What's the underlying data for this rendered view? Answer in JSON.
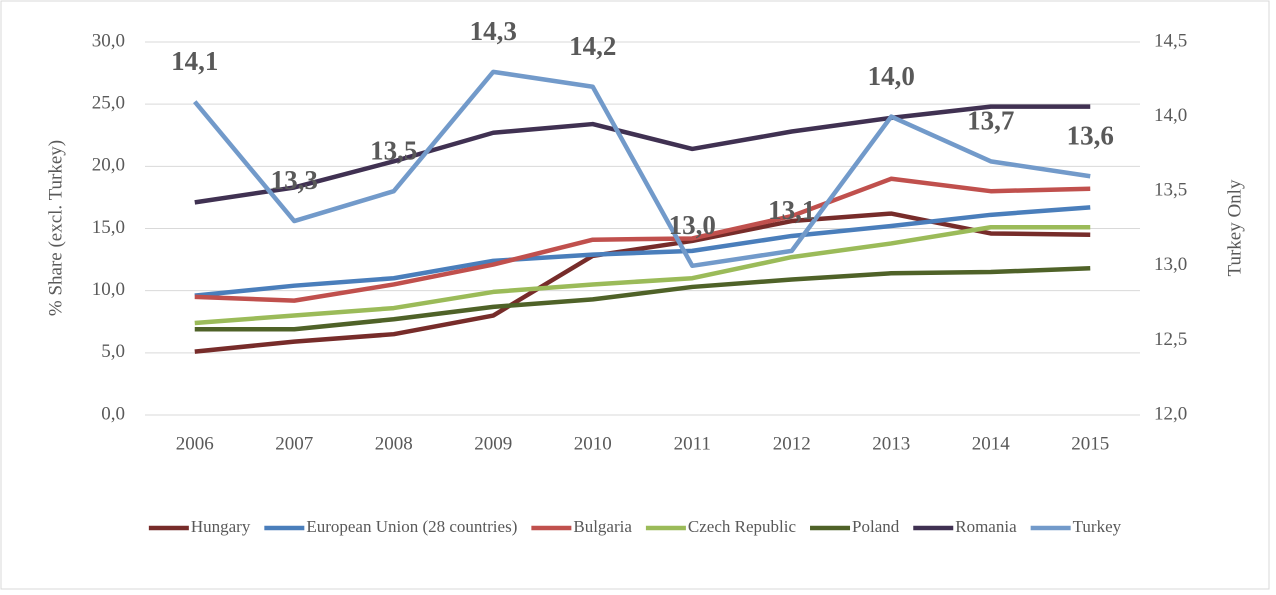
{
  "chart_data": {
    "type": "line",
    "categories": [
      "2006",
      "2007",
      "2008",
      "2009",
      "2010",
      "2011",
      "2012",
      "2013",
      "2014",
      "2015"
    ],
    "y_label": "% Share (excl. Turkey)",
    "y2_label": "Turkey Only",
    "ylim": [
      0,
      30
    ],
    "yticks": [
      {
        "value": 0,
        "label": "0,0"
      },
      {
        "value": 5,
        "label": "5,0"
      },
      {
        "value": 10,
        "label": "10,0"
      },
      {
        "value": 15,
        "label": "15,0"
      },
      {
        "value": 20,
        "label": "20,0"
      },
      {
        "value": 25,
        "label": "25,0"
      },
      {
        "value": 30,
        "label": "30,0"
      }
    ],
    "y2lim": [
      12,
      14.5
    ],
    "y2ticks": [
      {
        "value": 12,
        "label": "12,0"
      },
      {
        "value": 12.5,
        "label": "12,5"
      },
      {
        "value": 13,
        "label": "13,0"
      },
      {
        "value": 13.5,
        "label": "13,5"
      },
      {
        "value": 14,
        "label": "14,0"
      },
      {
        "value": 14.5,
        "label": "14,5"
      }
    ],
    "grid": true,
    "legend": "bottom",
    "series": [
      {
        "name": "Hungary",
        "color": "#772c2a",
        "values": [
          5.1,
          5.9,
          6.5,
          8.0,
          12.8,
          14.0,
          15.6,
          16.2,
          14.6,
          14.5
        ]
      },
      {
        "name": "European Union (28 countries)",
        "color": "#4a7ebb",
        "values": [
          9.6,
          10.4,
          11.0,
          12.4,
          12.9,
          13.2,
          14.4,
          15.2,
          16.1,
          16.7
        ]
      },
      {
        "name": "Bulgaria",
        "color": "#c0504d",
        "values": [
          9.5,
          9.2,
          10.5,
          12.1,
          14.1,
          14.2,
          16.0,
          19.0,
          18.0,
          18.2
        ]
      },
      {
        "name": "Czech Republic",
        "color": "#9bbb59",
        "values": [
          7.4,
          8.0,
          8.6,
          9.9,
          10.5,
          11.0,
          12.7,
          13.8,
          15.1,
          15.1
        ]
      },
      {
        "name": "Poland",
        "color": "#4f6228",
        "values": [
          6.9,
          6.9,
          7.7,
          8.7,
          9.3,
          10.3,
          10.9,
          11.4,
          11.5,
          11.8
        ]
      },
      {
        "name": "Romania",
        "color": "#403152",
        "values": [
          17.1,
          18.3,
          20.4,
          22.7,
          23.4,
          21.4,
          22.8,
          23.9,
          24.8,
          24.8
        ]
      },
      {
        "name": "Turkey",
        "color": "#729aca",
        "axis": "y2",
        "values": [
          14.1,
          13.3,
          13.5,
          14.3,
          14.2,
          13.0,
          13.1,
          14.0,
          13.7,
          13.6
        ],
        "value_labels": [
          "14,1",
          "13,3",
          "13,5",
          "14,3",
          "14,2",
          "13,0",
          "13,1",
          "14,0",
          "13,7",
          "13,6"
        ]
      }
    ]
  }
}
